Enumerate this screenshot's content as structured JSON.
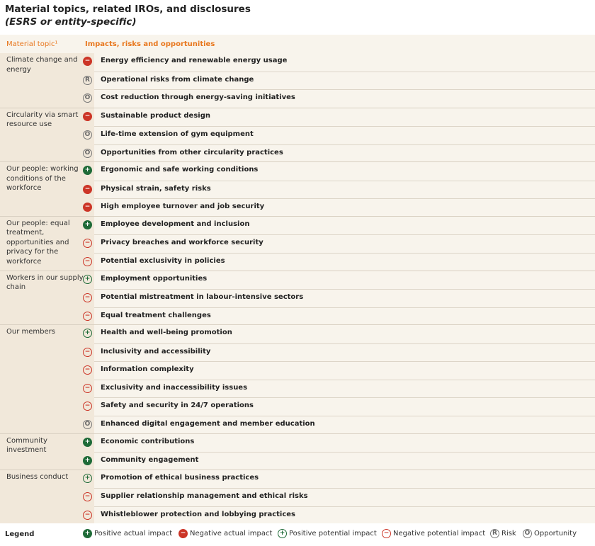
{
  "title": "Material topics, related IROs, and disclosures",
  "subtitle": "(ESRS or entity-specific)",
  "header": {
    "topic": "Material topic¹",
    "iro": "Impacts, risks and opportunities"
  },
  "colors": {
    "accent": "#e8771e",
    "positive": "#1f6b38",
    "negative": "#cc3527"
  },
  "icon_glyphs": {
    "pa": "+",
    "na": "−",
    "pp": "+",
    "np": "−",
    "r": "R",
    "o": "O"
  },
  "groups": [
    {
      "topic": "Climate change and energy",
      "items": [
        {
          "type": "na",
          "label": "Energy efficiency and renewable energy usage"
        },
        {
          "type": "r",
          "label": "Operational risks from climate change"
        },
        {
          "type": "o",
          "label": "Cost reduction through energy-saving initiatives"
        }
      ]
    },
    {
      "topic": "Circularity via smart resource use",
      "items": [
        {
          "type": "na",
          "label": "Sustainable product design"
        },
        {
          "type": "o",
          "label": "Life-time extension of gym equipment"
        },
        {
          "type": "o",
          "label": "Opportunities from other circularity practices"
        }
      ]
    },
    {
      "topic": "Our people: working conditions of the workforce",
      "items": [
        {
          "type": "pa",
          "label": "Ergonomic and safe working conditions"
        },
        {
          "type": "na",
          "label": "Physical strain, safety risks"
        },
        {
          "type": "na",
          "label": "High employee turnover and job security"
        }
      ]
    },
    {
      "topic": "Our people: equal treatment, opportunities and privacy for the workforce",
      "items": [
        {
          "type": "pa",
          "label": "Employee development and inclusion"
        },
        {
          "type": "np",
          "label": "Privacy breaches and workforce security"
        },
        {
          "type": "np",
          "label": "Potential exclusivity in policies"
        }
      ]
    },
    {
      "topic": "Workers in our supply chain",
      "items": [
        {
          "type": "pp",
          "label": "Employment opportunities"
        },
        {
          "type": "np",
          "label": "Potential mistreatment in labour-intensive sectors"
        },
        {
          "type": "np",
          "label": "Equal treatment challenges"
        }
      ]
    },
    {
      "topic": "Our members",
      "items": [
        {
          "type": "pp",
          "label": "Health and well-being promotion"
        },
        {
          "type": "np",
          "label": "Inclusivity and accessibility"
        },
        {
          "type": "np",
          "label": "Information complexity"
        },
        {
          "type": "np",
          "label": "Exclusivity and inaccessibility issues"
        },
        {
          "type": "np",
          "label": "Safety and security in 24/7 operations"
        },
        {
          "type": "o",
          "label": "Enhanced digital engagement and member education"
        }
      ]
    },
    {
      "topic": "Community investment",
      "items": [
        {
          "type": "pa",
          "label": "Economic contributions"
        },
        {
          "type": "pa",
          "label": "Community engagement"
        }
      ]
    },
    {
      "topic": "Business conduct",
      "items": [
        {
          "type": "pp",
          "label": "Promotion of ethical business practices"
        },
        {
          "type": "np",
          "label": "Supplier relationship management and ethical risks"
        },
        {
          "type": "np",
          "label": "Whistleblower protection and lobbying practices"
        }
      ]
    }
  ],
  "legend": {
    "title": "Legend",
    "items": [
      {
        "type": "pa",
        "label": "Positive actual impact"
      },
      {
        "type": "na",
        "label": "Negative actual impact"
      },
      {
        "type": "pp",
        "label": "Positive potential impact"
      },
      {
        "type": "np",
        "label": "Negative potential impact"
      },
      {
        "type": "r",
        "label": "Risk"
      },
      {
        "type": "o",
        "label": "Opportunity"
      }
    ]
  }
}
